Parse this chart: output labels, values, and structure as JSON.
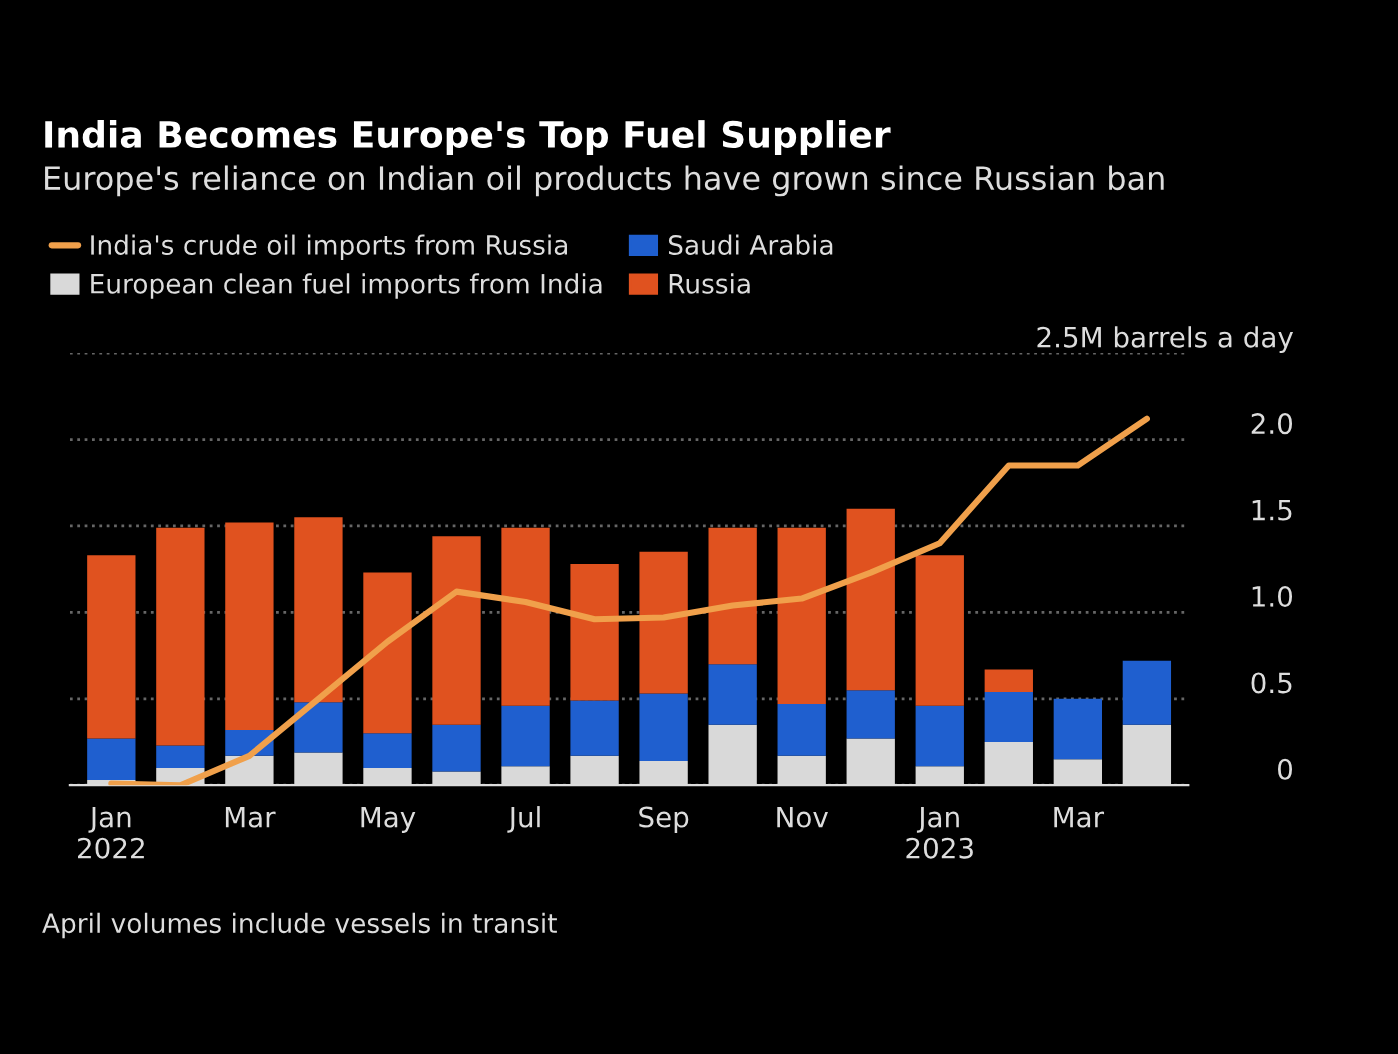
{
  "chart_data": {
    "type": "bar",
    "title": "India Becomes Europe's Top Fuel Supplier",
    "subtitle": "Europe's reliance on Indian oil products have grown since Russian ban",
    "categories": [
      "Jan\n2022",
      null,
      "Mar",
      null,
      "May",
      null,
      "Jul",
      null,
      "Sep",
      null,
      "Nov",
      null,
      "Jan\n2023",
      null,
      "Mar",
      null
    ],
    "stacked": true,
    "series": [
      {
        "name": "India's crude oil imports from Russia",
        "type": "line",
        "color": "#f0a04b",
        "values": [
          0.01,
          0.0,
          0.17,
          0.5,
          0.83,
          1.12,
          1.06,
          0.96,
          0.97,
          1.04,
          1.08,
          1.23,
          1.4,
          1.85,
          1.85,
          2.12
        ]
      },
      {
        "name": "European clean fuel imports from India",
        "color": "#d9d9d9",
        "values": [
          0.03,
          0.1,
          0.17,
          0.19,
          0.1,
          0.08,
          0.11,
          0.17,
          0.14,
          0.35,
          0.17,
          0.27,
          0.11,
          0.25,
          0.15,
          0.35
        ]
      },
      {
        "name": "Saudi Arabia",
        "color": "#1f5fcf",
        "values": [
          0.24,
          0.13,
          0.15,
          0.29,
          0.2,
          0.27,
          0.35,
          0.32,
          0.39,
          0.35,
          0.3,
          0.28,
          0.35,
          0.29,
          0.35,
          0.37
        ]
      },
      {
        "name": "Russia",
        "color": "#e0521f",
        "values": [
          1.06,
          1.26,
          1.2,
          1.07,
          0.93,
          1.09,
          1.03,
          0.79,
          0.82,
          0.79,
          1.02,
          1.05,
          0.87,
          0.13,
          null,
          null
        ]
      }
    ],
    "ylim": [
      0,
      2.5
    ],
    "yticks": [
      0,
      0.5,
      {
        "value": 1,
        "label": "1.0"
      },
      1.5,
      {
        "value": 2,
        "label": "2.0"
      },
      {
        "value": 2.5,
        "label": "2.5M barrels a day"
      }
    ],
    "grid": "y",
    "legend": "top left",
    "annotations": [
      "April volumes include vessels in transit"
    ]
  }
}
